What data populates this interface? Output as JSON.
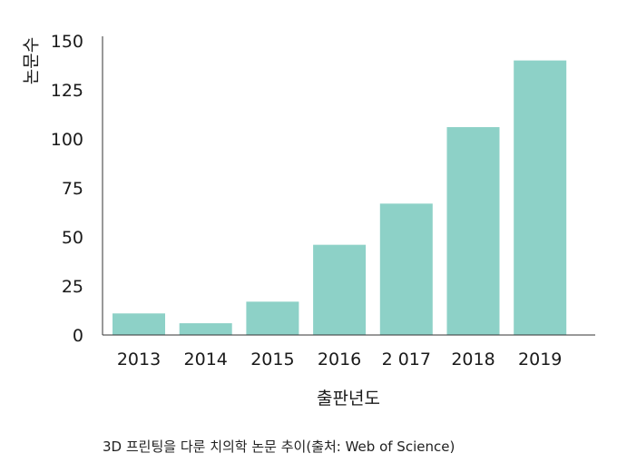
{
  "chart_data": {
    "type": "bar",
    "categories": [
      "2013",
      "2014",
      "2015",
      "2016",
      "2 017",
      "2018",
      "2019"
    ],
    "values": [
      11,
      6,
      17,
      46,
      67,
      106,
      140
    ],
    "ylim": [
      0,
      150
    ],
    "yticks": [
      "0",
      "25",
      "50",
      "75",
      "100",
      "125",
      "150"
    ],
    "ylabel": "논문수",
    "xlabel": "출판년도",
    "caption": "3D 프린팅을 다룬 치의학 논문 추이(출처: Web of Science)",
    "grid": false,
    "colors": {
      "bar": "#8dd1c7",
      "axis": "#333333"
    }
  }
}
